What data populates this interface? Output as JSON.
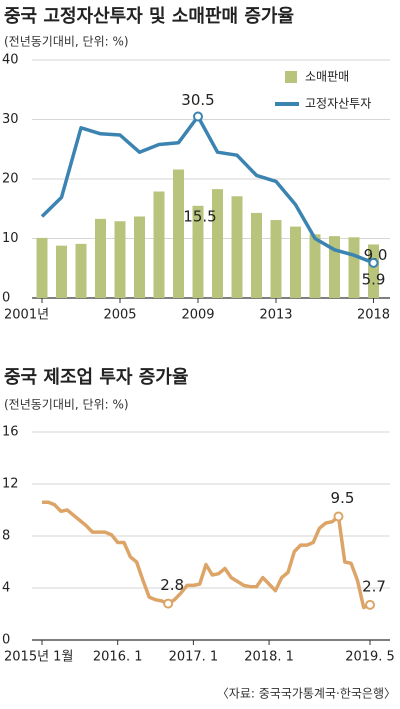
{
  "chart_data": [
    {
      "type": "combo",
      "title": "중국 고정자산투자 및 소매판매 증가율",
      "subtitle": "(전년동기대비, 단위: %)",
      "categories": [
        "2001년",
        null,
        null,
        null,
        "2005",
        null,
        null,
        null,
        "2009",
        null,
        null,
        null,
        "2013",
        null,
        null,
        null,
        null,
        "2018"
      ],
      "series": [
        {
          "name": "소매판매",
          "type": "bar",
          "color": "#b8c47c",
          "values": [
            10.1,
            8.8,
            9.1,
            13.3,
            12.9,
            13.7,
            17.9,
            21.6,
            15.5,
            18.3,
            17.1,
            14.3,
            13.1,
            12.0,
            10.7,
            10.4,
            10.2,
            9.0
          ],
          "value_labels": [
            null,
            null,
            null,
            null,
            null,
            null,
            null,
            null,
            "15.5",
            null,
            null,
            null,
            null,
            null,
            null,
            null,
            null,
            "9.0"
          ]
        },
        {
          "name": "고정자산투자",
          "type": "line",
          "color": "#3b83b1",
          "values": [
            13.7,
            16.9,
            28.6,
            27.6,
            27.4,
            24.5,
            25.8,
            26.1,
            30.5,
            24.5,
            24.0,
            20.6,
            19.6,
            15.7,
            10.0,
            8.1,
            7.2,
            5.9
          ],
          "value_labels": [
            null,
            null,
            null,
            null,
            null,
            null,
            null,
            null,
            "30.5",
            null,
            null,
            null,
            null,
            null,
            null,
            null,
            null,
            "5.9"
          ]
        }
      ],
      "ylim": [
        0,
        40
      ],
      "yticks": [
        0,
        10,
        20,
        30,
        40
      ],
      "grid": true,
      "legend": "top-right"
    },
    {
      "type": "line",
      "title": "중국 제조업 투자 증가율",
      "subtitle": "(전년동기대비, 단위: %)",
      "categories": [
        "2015년 1월",
        null,
        null,
        null,
        null,
        null,
        null,
        null,
        null,
        null,
        null,
        null,
        "2016. 1",
        null,
        null,
        null,
        null,
        null,
        null,
        null,
        null,
        null,
        null,
        null,
        "2017. 1",
        null,
        null,
        null,
        null,
        null,
        null,
        null,
        null,
        null,
        null,
        null,
        "2018. 1",
        null,
        null,
        null,
        null,
        null,
        null,
        null,
        null,
        null,
        null,
        null,
        null,
        null,
        null,
        null,
        "2019. 5"
      ],
      "color": "#dda468",
      "values": [
        10.6,
        10.6,
        10.4,
        9.9,
        10.0,
        9.6,
        9.2,
        8.8,
        8.3,
        8.3,
        8.3,
        8.1,
        7.5,
        7.5,
        6.4,
        6.0,
        4.6,
        3.3,
        3.1,
        3.0,
        2.8,
        3.1,
        3.6,
        4.2,
        4.2,
        4.3,
        5.8,
        5.0,
        5.1,
        5.5,
        4.8,
        4.5,
        4.2,
        4.1,
        4.1,
        4.8,
        4.3,
        3.8,
        4.8,
        5.2,
        6.8,
        7.3,
        7.3,
        7.5,
        8.6,
        9.0,
        9.1,
        9.5,
        6.0,
        5.9,
        4.6,
        2.5,
        2.7
      ],
      "value_labels": [
        null,
        null,
        null,
        null,
        null,
        null,
        null,
        null,
        null,
        null,
        null,
        null,
        null,
        null,
        null,
        null,
        null,
        null,
        null,
        null,
        "2.8",
        null,
        null,
        null,
        null,
        null,
        null,
        null,
        null,
        null,
        null,
        null,
        null,
        null,
        null,
        null,
        null,
        null,
        null,
        null,
        null,
        null,
        null,
        null,
        null,
        null,
        null,
        "9.5",
        null,
        null,
        null,
        null,
        "2.7"
      ],
      "ylim": [
        0,
        16
      ],
      "yticks": [
        0,
        4,
        8,
        12,
        16
      ],
      "grid": true
    }
  ],
  "source": "〈자료: 중국국가통계국·한국은행〉"
}
